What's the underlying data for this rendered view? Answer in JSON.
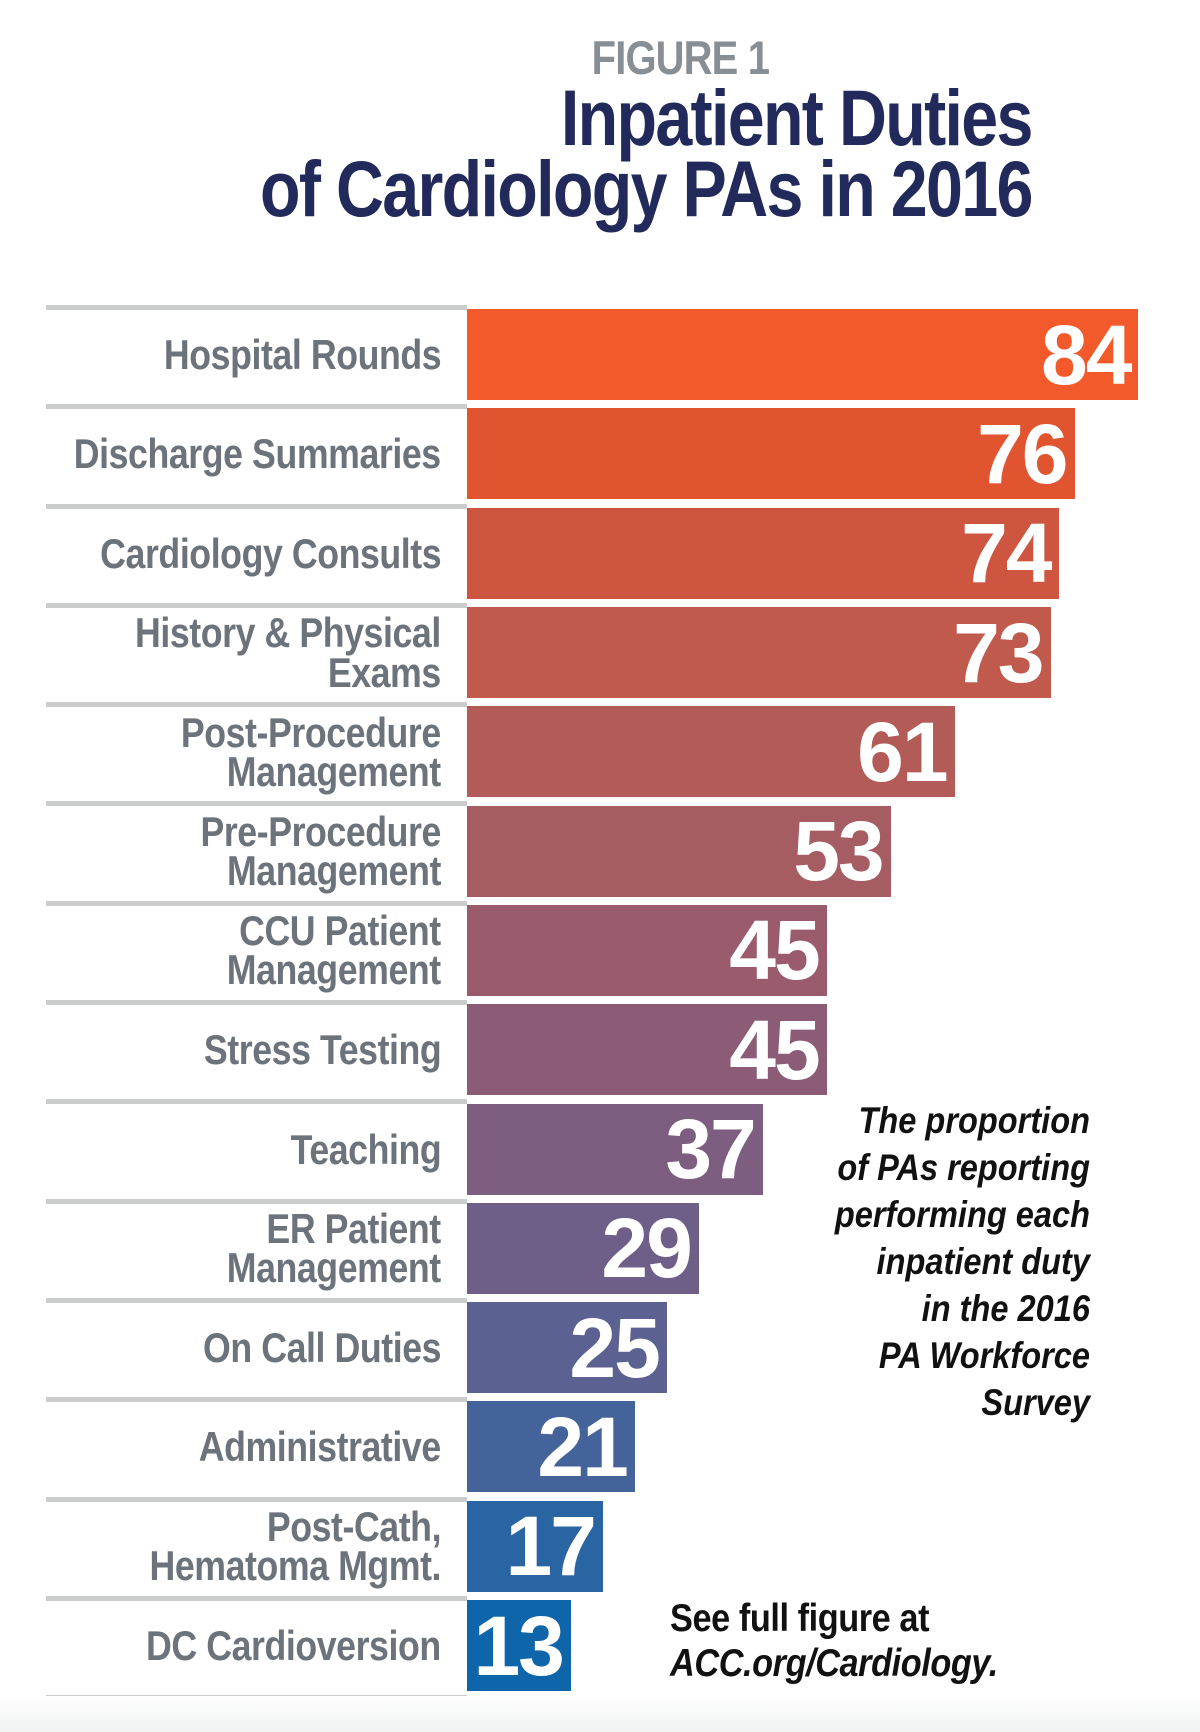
{
  "header": {
    "figure_label": "FIGURE 1",
    "title_line1": "Inpatient Duties",
    "title_line2": "of Cardiology PAs in 2016"
  },
  "chart_data": {
    "type": "bar",
    "orientation": "horizontal",
    "title": "Inpatient Duties of Cardiology PAs in 2016",
    "xlabel": "",
    "ylabel": "",
    "xlim": [
      0,
      92
    ],
    "grid": false,
    "legend": "none",
    "value_labels_shown": true,
    "categories": [
      "Hospital Rounds",
      "Discharge Summaries",
      "Cardiology Consults",
      "History & Physical\nExams",
      "Post-Procedure\nManagement",
      "Pre-Procedure\nManagement",
      "CCU Patient\nManagement",
      "Stress Testing",
      "Teaching",
      "ER Patient\nManagement",
      "On Call Duties",
      "Administrative",
      "Post-Cath,\nHematoma Mgmt.",
      "DC Cardioversion"
    ],
    "values": [
      84,
      76,
      74,
      73,
      61,
      53,
      45,
      45,
      37,
      29,
      25,
      21,
      17,
      13
    ],
    "bar_colors": [
      "#F25A2C",
      "#E0552F",
      "#CE5641",
      "#C05A4C",
      "#B25B57",
      "#A65C63",
      "#9A5C6D",
      "#8C5C76",
      "#7D5E80",
      "#6E5F88",
      "#5B6190",
      "#44639B",
      "#2964A3",
      "#0E65A9"
    ],
    "annotation": "The proportion\nof PAs reporting\nperforming each\ninpatient duty\nin the 2016\nPA Workforce\nSurvey",
    "footnote_line1": "See full figure at",
    "footnote_line2": "ACC.org/Cardiology."
  },
  "colors": {
    "title_navy": "#222A5B",
    "figure_label_gray": "#878F94",
    "category_label_gray": "#6C737A",
    "divider_gray": "#CBCDCD",
    "value_text": "#FFFFFF",
    "annotation_text": "#111111"
  }
}
